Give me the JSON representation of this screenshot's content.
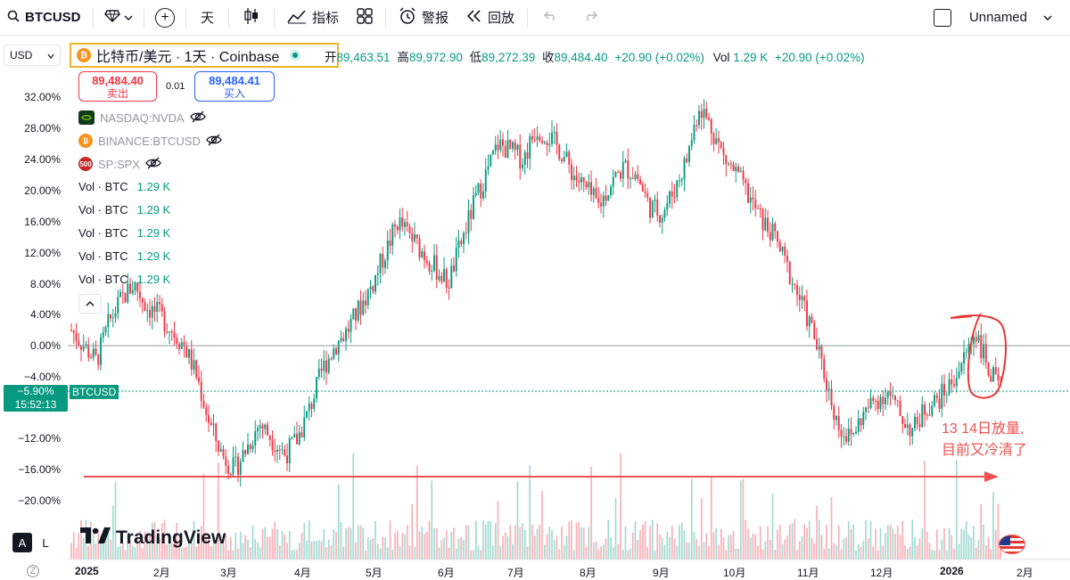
{
  "toolbar": {
    "symbol": "BTCUSD",
    "interval": "天",
    "indicators_label": "指标",
    "alert_label": "警报",
    "replay_label": "回放",
    "layout_name": "Unnamed"
  },
  "legend": {
    "currency": "USD",
    "title": "比特币/美元 · 1天 · Coinbase",
    "ohlc": {
      "open_label": "开",
      "open": "89,463.51",
      "high_label": "高",
      "high": "89,972.90",
      "low_label": "低",
      "low": "89,272.39",
      "close_label": "收",
      "close": "89,484.40",
      "change": "+20.90 (+0.02%)",
      "vol_label": "Vol",
      "vol": "1.29 K",
      "vol_change": "+20.90 (+0.02%)"
    },
    "sell": {
      "price": "89,484.40",
      "label": "卖出"
    },
    "spread": "0.01",
    "buy": {
      "price": "89,484.41",
      "label": "买入"
    },
    "compare_symbols": [
      {
        "name": "NASDAQ:NVDA",
        "icon": "nvidia-icon",
        "color": "#76b900"
      },
      {
        "name": "BINANCE:BTCUSD",
        "icon": "bitcoin-icon",
        "color": "#f7931a"
      },
      {
        "name": "SP:SPX",
        "icon": "sp500-icon",
        "color": "#c62828",
        "badge": "500"
      }
    ],
    "volume_rows": [
      {
        "label": "Vol · BTC",
        "value": "1.29 K"
      },
      {
        "label": "Vol · BTC",
        "value": "1.29 K"
      },
      {
        "label": "Vol · BTC",
        "value": "1.29 K"
      },
      {
        "label": "Vol · BTC",
        "value": "1.29 K"
      },
      {
        "label": "Vol · BTC",
        "value": "1.29 K"
      }
    ]
  },
  "y_axis": [
    "32.00%",
    "28.00%",
    "24.00%",
    "20.00%",
    "16.00%",
    "12.00%",
    "8.00%",
    "4.00%",
    "0.00%",
    "−4.00%",
    "−12.00%",
    "−16.00%",
    "−20.00%"
  ],
  "x_axis": [
    "2025",
    "2月",
    "3月",
    "4月",
    "5月",
    "6月",
    "7月",
    "8月",
    "9月",
    "10月",
    "11月",
    "12月",
    "2026",
    "2月"
  ],
  "price_tag": {
    "pct": "−5.90%",
    "time": "15:52:13",
    "symbol": "BTCUSD"
  },
  "annotation": [
    "13 14日放量,",
    "目前又冷清了"
  ],
  "brand": "TradingView",
  "scale_buttons": [
    "A",
    "L"
  ],
  "colors": {
    "up": "#089981",
    "down": "#f23645",
    "annotation": "#ef5350",
    "highlight": "#f0b429"
  },
  "chart_data": {
    "type": "candlestick",
    "xlabel": "",
    "ylabel": "",
    "ylim": [
      -22,
      34
    ],
    "x_ticks": [
      "2025",
      "2月",
      "3月",
      "4月",
      "5月",
      "6月",
      "7月",
      "8月",
      "9月",
      "10月",
      "11月",
      "12月",
      "2026",
      "2月"
    ],
    "y_ticks_pct": [
      32,
      28,
      24,
      20,
      16,
      12,
      8,
      4,
      0,
      -4,
      -12,
      -16,
      -20
    ],
    "current_pct": -5.9,
    "close_path_pct": [
      2,
      0,
      -2,
      3,
      6,
      8,
      5,
      4,
      2,
      0,
      -4,
      -10,
      -14,
      -16,
      -13,
      -10,
      -12,
      -14,
      -12,
      -8,
      -3,
      0,
      2,
      5,
      8,
      12,
      16,
      14,
      12,
      10,
      8,
      13,
      18,
      22,
      26,
      25,
      24,
      28,
      27,
      25,
      22,
      20,
      18,
      21,
      23,
      22,
      18,
      17,
      20,
      24,
      31,
      28,
      24,
      22,
      19,
      16,
      14,
      10,
      6,
      2,
      -4,
      -10,
      -12,
      -9,
      -7,
      -6,
      -9,
      -11,
      -8,
      -7,
      -5,
      -2,
      2,
      -3,
      -6
    ]
  }
}
